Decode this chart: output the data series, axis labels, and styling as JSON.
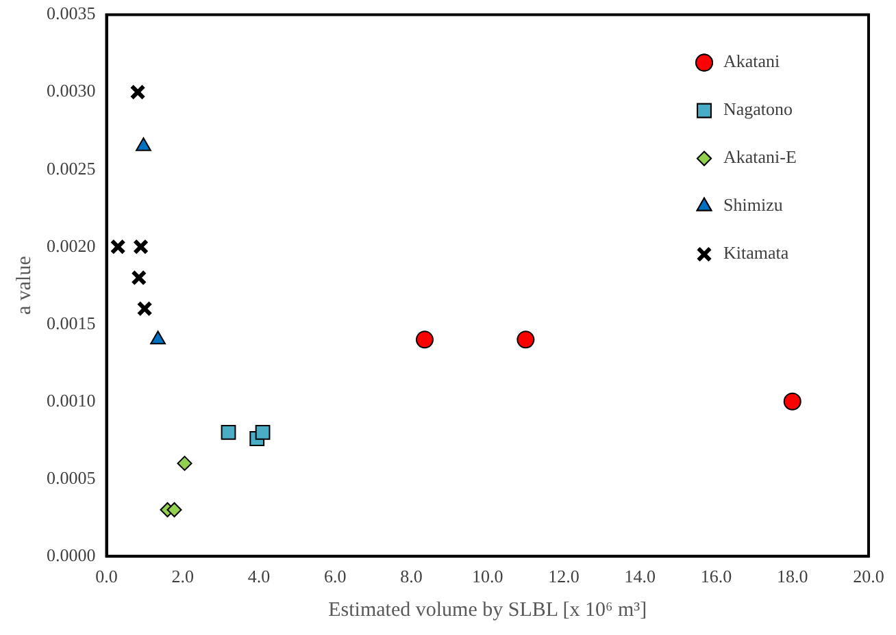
{
  "chart_data": {
    "type": "scatter",
    "xlabel": "Estimated volume by SLBL [x 10⁶ m³]",
    "ylabel": "a value",
    "xlim": [
      0,
      20
    ],
    "ylim": [
      0,
      0.0035
    ],
    "xticks": [
      {
        "value": 0,
        "label": "0.0"
      },
      {
        "value": 2,
        "label": "2.0"
      },
      {
        "value": 4,
        "label": "4.0"
      },
      {
        "value": 6,
        "label": "6.0"
      },
      {
        "value": 8,
        "label": "8.0"
      },
      {
        "value": 10,
        "label": "10.0"
      },
      {
        "value": 12,
        "label": "12.0"
      },
      {
        "value": 14,
        "label": "14.0"
      },
      {
        "value": 16,
        "label": "16.0"
      },
      {
        "value": 18,
        "label": "18.0"
      },
      {
        "value": 20,
        "label": "20.0"
      }
    ],
    "yticks": [
      {
        "value": 0,
        "label": "0.0000"
      },
      {
        "value": 0.0005,
        "label": "0.0005"
      },
      {
        "value": 0.001,
        "label": "0.0010"
      },
      {
        "value": 0.0015,
        "label": "0.0015"
      },
      {
        "value": 0.002,
        "label": "0.0020"
      },
      {
        "value": 0.0025,
        "label": "0.0025"
      },
      {
        "value": 0.003,
        "label": "0.0030"
      },
      {
        "value": 0.0035,
        "label": "0.0035"
      }
    ],
    "grid": false,
    "legend": "top right",
    "series": [
      {
        "name": "Akatani",
        "color": "#ff0000",
        "marker": "circle",
        "x": [
          8.35,
          11.0,
          18.0
        ],
        "values": [
          0.0014,
          0.0014,
          0.001
        ]
      },
      {
        "name": "Nagatono",
        "color": "#4bacc6",
        "marker": "square",
        "x": [
          3.2,
          3.95,
          4.1
        ],
        "values": [
          0.0008,
          0.00076,
          0.0008
        ]
      },
      {
        "name": "Akatani-E",
        "color": "#92d050",
        "marker": "diamond",
        "x": [
          2.05,
          1.6,
          1.78
        ],
        "values": [
          0.0006,
          0.0003,
          0.0003
        ]
      },
      {
        "name": "Shimizu",
        "color": "#0070c0",
        "marker": "triangle",
        "x": [
          0.97,
          1.35
        ],
        "values": [
          0.00265,
          0.0014
        ]
      },
      {
        "name": "Kitamata",
        "color": "#000000",
        "marker": "cross",
        "x": [
          0.82,
          0.3,
          0.9,
          0.85,
          1.0
        ],
        "values": [
          0.003,
          0.002,
          0.002,
          0.0018,
          0.0016
        ]
      }
    ]
  }
}
